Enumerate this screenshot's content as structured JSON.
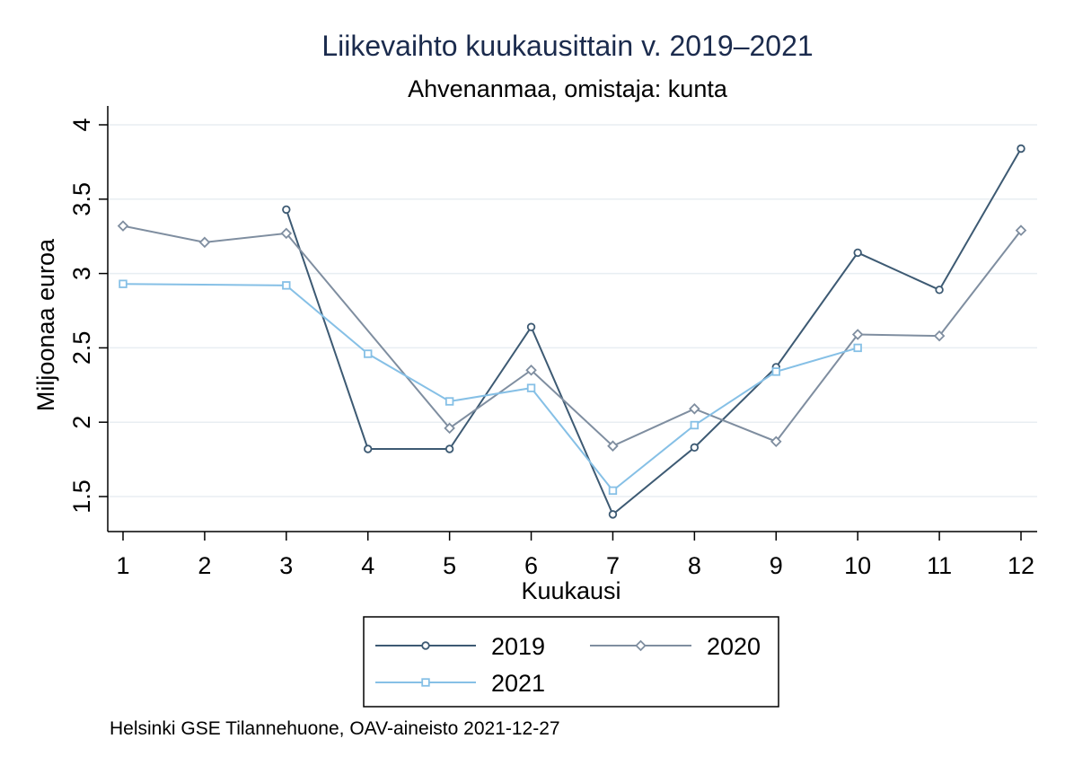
{
  "chart_data": {
    "type": "line",
    "title": "Liikevaihto kuukausittain v. 2019–2021",
    "subtitle": "Ahvenanmaa, omistaja: kunta",
    "xlabel": "Kuukausi",
    "ylabel": "Miljoonaa euroa",
    "x": [
      1,
      2,
      3,
      4,
      5,
      6,
      7,
      8,
      9,
      10,
      11,
      12
    ],
    "xlim": [
      1,
      12
    ],
    "ylim": [
      1.5,
      4
    ],
    "yticks": [
      "1.5",
      "2",
      "2.5",
      "3",
      "3.5",
      "4"
    ],
    "grid": true,
    "legend_position": "bottom",
    "series": [
      {
        "name": "2019",
        "color": "#3d5a73",
        "marker": "circle",
        "values": [
          null,
          null,
          3.43,
          1.82,
          1.82,
          2.64,
          1.38,
          1.83,
          2.37,
          3.14,
          2.89,
          3.84
        ]
      },
      {
        "name": "2020",
        "color": "#7f8ea0",
        "marker": "diamond",
        "values": [
          3.32,
          3.21,
          3.27,
          null,
          1.96,
          2.35,
          1.84,
          2.09,
          1.87,
          2.59,
          2.58,
          3.29
        ]
      },
      {
        "name": "2021",
        "color": "#86c0e6",
        "marker": "square",
        "values": [
          2.93,
          null,
          2.92,
          2.46,
          2.14,
          2.23,
          1.54,
          1.98,
          2.34,
          2.5,
          null,
          null
        ]
      }
    ]
  },
  "note": "Helsinki GSE Tilannehuone, OAV-aineisto 2021-12-27"
}
